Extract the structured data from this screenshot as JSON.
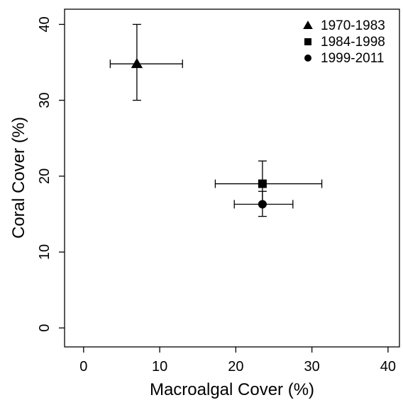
{
  "chart_data": {
    "type": "scatter",
    "title": "",
    "xlabel": "Macroalgal Cover (%)",
    "ylabel": "Coral Cover (%)",
    "xlim": [
      -2.5,
      41.5
    ],
    "ylim": [
      -2.5,
      42
    ],
    "xticks": [
      0,
      10,
      20,
      30,
      40
    ],
    "yticks": [
      0,
      10,
      20,
      30,
      40
    ],
    "grid": false,
    "legend_position": "top-right",
    "series": [
      {
        "name": "1970-1983",
        "marker": "triangle",
        "x": 7.0,
        "y": 34.8,
        "x_err": [
          3.5,
          13.0
        ],
        "y_err": [
          30.0,
          40.0
        ]
      },
      {
        "name": "1984-1998",
        "marker": "square",
        "x": 23.5,
        "y": 19.0,
        "x_err": [
          17.3,
          31.3
        ],
        "y_err": [
          16.4,
          22.0
        ]
      },
      {
        "name": "1999-2011",
        "marker": "circle",
        "x": 23.5,
        "y": 16.3,
        "x_err": [
          19.8,
          27.5
        ],
        "y_err": [
          14.7,
          18.0
        ]
      }
    ]
  }
}
